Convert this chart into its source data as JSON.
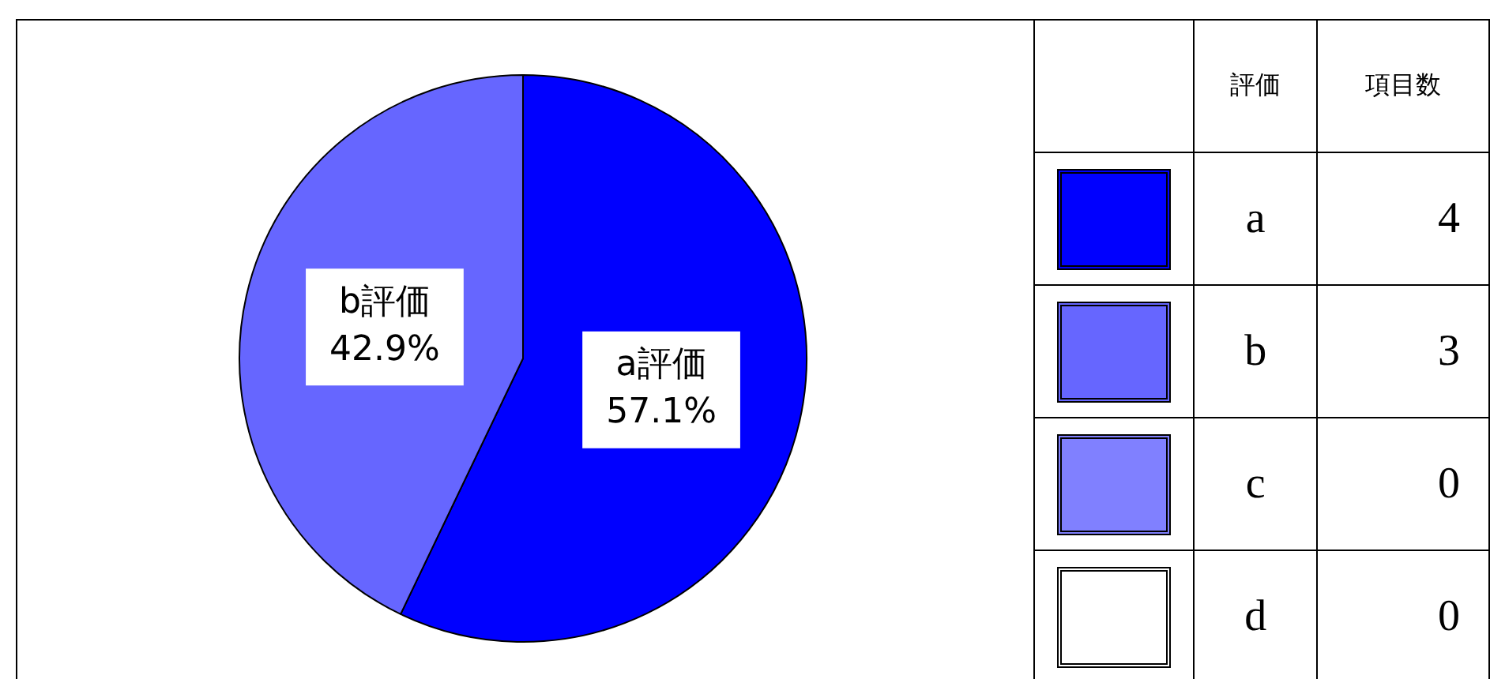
{
  "chart_data": {
    "type": "pie",
    "categories": [
      "a",
      "b",
      "c",
      "d"
    ],
    "values": [
      57.1,
      42.9,
      0,
      0
    ],
    "colors": [
      "#0000ff",
      "#6666ff",
      "#8080ff",
      "#ffffff"
    ],
    "value_labels": [
      "a評価\n57.1%",
      "b評価\n42.9%",
      null,
      null
    ],
    "legend": "right",
    "legend_title": "評価",
    "annotations": [
      "項目数",
      "4",
      "3",
      "0",
      "0"
    ]
  }
}
